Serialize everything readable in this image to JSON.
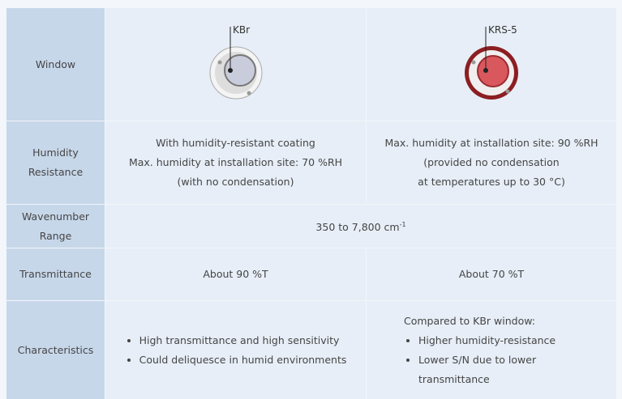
{
  "table": {
    "row_headers": [
      "Window",
      "Humidity Resistance",
      "Wavenumber Range",
      "Transmittance",
      "Characteristics"
    ],
    "window": {
      "kbr_label": "KBr",
      "krs5_label": "KRS-5"
    },
    "humidity": {
      "kbr": [
        "With humidity-resistant coating",
        "Max. humidity at installation site: 70 %RH",
        "(with no condensation)"
      ],
      "krs5": [
        "Max. humidity at installation site: 90 %RH",
        "(provided no condensation",
        "at temperatures up to 30 °C)"
      ]
    },
    "wavenumber": {
      "text": "350 to 7,800 cm",
      "superscript": "-1"
    },
    "transmittance": {
      "kbr": "About 90 %T",
      "krs5": "About 70 %T"
    },
    "characteristics": {
      "kbr": [
        "High transmittance and high sensitivity",
        "Could deliquesce in humid environments"
      ],
      "krs5_intro": "Compared to KBr window:",
      "krs5": [
        "Higher humidity-resistance",
        "Lower S/N due to lower transmittance"
      ]
    }
  }
}
